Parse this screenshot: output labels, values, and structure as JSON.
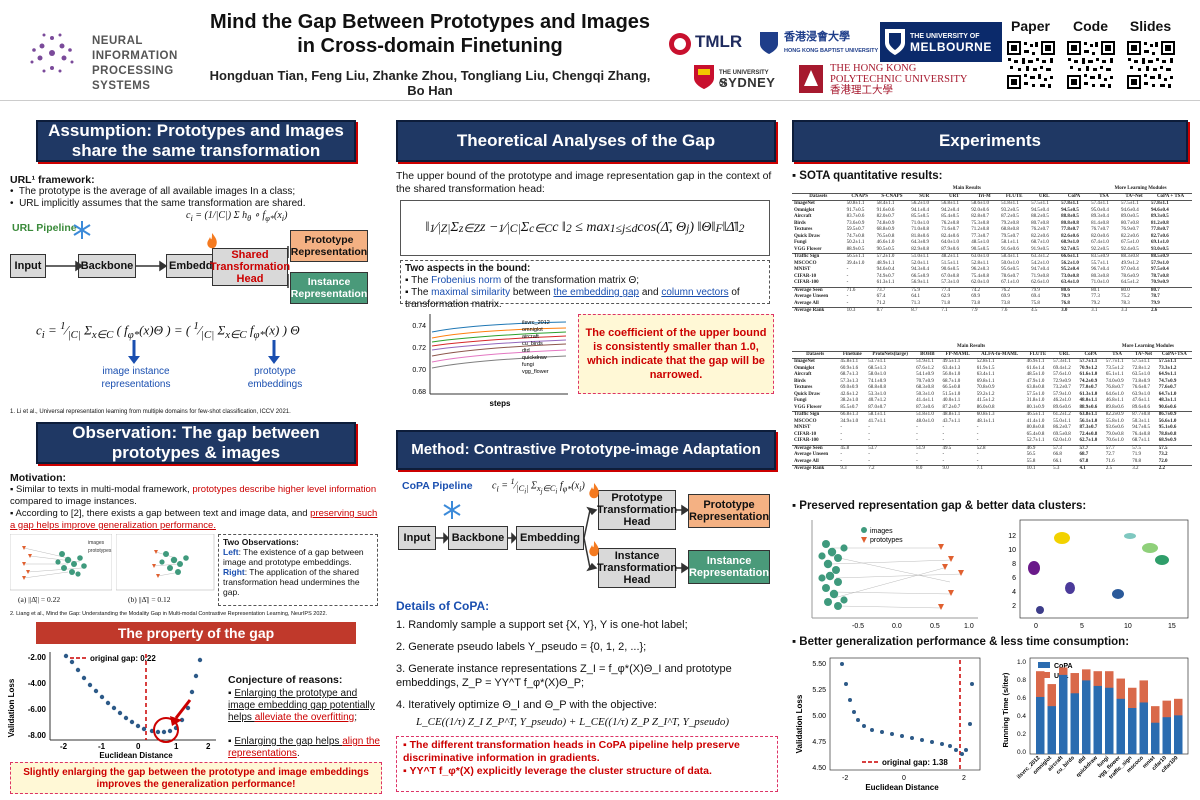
{
  "header": {
    "title_line1": "Mind the Gap Between Prototypes and Images",
    "title_line2": "in Cross-domain Finetuning",
    "authors": "Hongduan Tian, Feng Liu, Zhanke Zhou, Tongliang Liu, Chengqi Zhang, Bo Han",
    "neurips_line1": "NEURAL INFORMATION",
    "neurips_line2": "PROCESSING SYSTEMS",
    "logos": {
      "tmlr": "TMLR",
      "hkbu_cn": "香港浸會大學",
      "hkbu_en": "HONG KONG BAPTIST UNIVERSITY",
      "melb1": "THE UNIVERSITY OF",
      "melb2": "MELBOURNE",
      "syd1": "THE UNIVERSITY OF",
      "syd2": "SYDNEY",
      "polyu1": "THE HONG KONG",
      "polyu2": "POLYTECHNIC UNIVERSITY",
      "polyu3": "香港理工大學"
    },
    "qr_labels": [
      "Paper",
      "Code",
      "Slides"
    ]
  },
  "left": {
    "banner1_line1": "Assumption: Prototypes and Images",
    "banner1_line2": "share the same transformation",
    "url_framework": "URL¹ framework:",
    "bullet1": "The prototype is the average of all available images In a class;",
    "bullet2": "URL implicitly assumes that the same transformation are shared.",
    "pipeline_label": "URL Pipeline",
    "input": "Input",
    "backbone": "Backbone",
    "embedding": "Embedding",
    "shared_head": "Shared Transformation Head",
    "proto_rep": "Prototype Representation",
    "inst_rep": "Instance Representation",
    "label_image_inst": "image instance representations",
    "label_proto_emb": "prototype embeddings",
    "footnote1": "1. Li et al., Universal representation learning from multiple domains for few-shot classification, ICCV 2021.",
    "banner2_line1": "Observation: The gap between",
    "banner2_line2": "prototypes & images",
    "motivation": "Motivation:",
    "mot1a": "Similar to texts in multi-modal framework, ",
    "mot1b": "prototypes describe higher level information",
    "mot1c": " compared to image instances.",
    "mot2a": "According to [2], there exists a gap between text and image data, and ",
    "mot2b": "preserving such a gap helps improve generalization performance.",
    "two_obs": "Two Observations:",
    "obs_left_k": "Left",
    "obs_left": ": The existence of a gap between image and prototype embeddings.",
    "obs_right_k": "Right",
    "obs_right": ": The application of the shared transformation head undermines the gap.",
    "cap_a": "(a) ||Δ̄|| = 0.22",
    "cap_b": "(b) ||Δ̄|| = 0.12",
    "legend_images": "images",
    "legend_prototypes": "prototypes",
    "footnote2": "2. Liang et al., Mind the Gap: Understanding the Modality Gap in Multi-modal Contrastive Representation Learning, NeurIPS 2022.",
    "banner3": "The property of the gap",
    "original_gap_label": "original gap: 0.22",
    "conjecture": "Conjecture of reasons:",
    "conj1a": "Enlarging the prototype and image embedding gap potentially helps ",
    "conj1b": "alleviate the overfitting",
    "conj1c": ";",
    "conj2a": "Enlarging the gap helps ",
    "conj2b": "align the representations",
    "conj2c": ".",
    "xlabel": "Euclidean Distance",
    "ylabel": "Validation Loss",
    "yticks": [
      "-2.00",
      "-4.00",
      "-6.00",
      "-8.00"
    ],
    "xticks": [
      "-2",
      "-1",
      "0",
      "1",
      "2"
    ],
    "conclusion": "Slightly enlarging the gap between the prototype and image embeddings improves the generalization performance!"
  },
  "middle": {
    "banner1": "Theoretical Analyses of the Gap",
    "upper_bound_text": "The upper bound of the prototype and image representation gap in the context of the shared transformation head:",
    "two_aspects": "Two aspects in the bound:",
    "aspect1a": "The ",
    "aspect1b": "Frobenius norm",
    "aspect1c": " of the transformation matrix Θ;",
    "aspect2a": "The ",
    "aspect2b": "maximal similarity",
    "aspect2c": " between ",
    "aspect2d": "the embedding gap",
    "aspect2e": " and ",
    "aspect2f": "column vectors",
    "aspect2g": " of transformation matrix.",
    "coef_text": "The coefficient of the upper bound is consistently smaller than 1.0, which indicate that the gap will be narrowed.",
    "steps_label": "steps",
    "coef_yticks": [
      "0.74",
      "0.72",
      "0.70",
      "0.68"
    ],
    "coef_legend": [
      "ilsvrc_2012",
      "omniglot",
      "aircraft",
      "cu_birds",
      "dtd",
      "quickdraw",
      "fungi",
      "vgg_flower"
    ],
    "banner2": "Method: Contrastive Prototype-image Adaptation",
    "copa_pipeline": "CoPA Pipeline",
    "input": "Input",
    "backbone": "Backbone",
    "embedding": "Embedding",
    "proto_head": "Prototype Transformation Head",
    "inst_head": "Instance Transformation Head",
    "proto_rep": "Prototype Representation",
    "inst_rep": "Instance Representation",
    "details": "Details of CoPA:",
    "step1": "1.  Randomly sample a support set {X, Y}, Y is one-hot label;",
    "step2": "2.  Generate pseudo labels Y_pseudo = {0, 1, 2, ...};",
    "step3": "3.  Generate instance representations Z_I = f_φ*(X)Θ_I and prototype embeddings, Z_P = YY^T f_φ*(X)Θ_P;",
    "step4": "4.  Iteratively optimize Θ_I and Θ_P with the objective:",
    "objective": "L_CE((1/τ) Z_I Z_P^T, Y_pseudo) + L_CE((1/τ) Z_P Z_I^T, Y_pseudo)",
    "note1": "The different transformation heads in CoPA pipeline help preserve discriminative information in gradients.",
    "note2": "YY^T f_φ*(X) explicitly leverage the cluster structure of data."
  },
  "right": {
    "banner": "Experiments",
    "sota": "SOTA quantitative results:",
    "preserved": "Preserved representation gap & better data clusters:",
    "better_gen": "Better generalization performance & less time consumption:",
    "legend_images": "images",
    "legend_prototypes": "prototypes",
    "orig_gap_label": "original gap: 1.38",
    "xlabel": "Euclidean Distance",
    "ylabel": "Validation Loss",
    "ylabel2": "Running Time (s/iter)",
    "legend_copa": "CoPA",
    "legend_url": "URL",
    "table1_headers": [
      "Datasets",
      "CNAPS",
      "S-CNAPS",
      "SUR",
      "URT",
      "Tri-M",
      "FLUTE",
      "URL",
      "CoPA",
      "TSA",
      "TA²-Net",
      "CoPA + TSA"
    ],
    "table1_group1": "Main Results",
    "table1_group2": "More Learning Modules",
    "table1_rows": [
      [
        "ImageNet",
        "50.8±1.1",
        "58.4±1.1",
        "56.2±1.0",
        "56.8±1.1",
        "58.6±1.0",
        "51.8±1.1",
        "57.5±1.1",
        "57.8±1.1",
        "57.4±1.1",
        "57.5±1.1",
        "57.8±1.1"
      ],
      [
        "Omniglot",
        "91.7±0.5",
        "91.6±0.6",
        "94.1±0.4",
        "94.2±0.4",
        "92.0±0.6",
        "93.2±0.5",
        "94.5±0.4",
        "94.5±0.5",
        "95.0±0.4",
        "94.6±0.4",
        "94.6±0.4"
      ],
      [
        "Aircraft",
        "83.7±0.6",
        "82.0±0.7",
        "85.5±0.5",
        "85.4±0.5",
        "82.8±0.7",
        "87.2±0.5",
        "88.2±0.5",
        "88.8±0.5",
        "89.3±0.4",
        "89.0±0.5",
        "89.3±0.5"
      ],
      [
        "Birds",
        "73.6±0.9",
        "74.8±0.9",
        "71.0±1.0",
        "76.2±0.8",
        "75.3±0.8",
        "79.2±0.8",
        "80.7±0.8",
        "80.8±0.8",
        "81.4±0.8",
        "80.7±0.8",
        "81.2±0.8"
      ],
      [
        "Textures",
        "59.5±0.7",
        "68.8±0.9",
        "71.0±0.8",
        "71.6±0.7",
        "71.2±0.8",
        "68.8±0.8",
        "76.2±0.7",
        "77.8±0.7",
        "76.7±0.7",
        "76.9±0.7",
        "77.8±0.7"
      ],
      [
        "Quick Draw",
        "74.7±0.8",
        "76.5±0.8",
        "81.8±0.6",
        "82.4±0.6",
        "77.3±0.7",
        "79.5±0.7",
        "82.2±0.6",
        "82.6±0.6",
        "82.0±0.6",
        "82.2±0.6",
        "82.7±0.6"
      ],
      [
        "Fungi",
        "50.2±1.1",
        "46.6±1.0",
        "64.3±0.9",
        "64.0±1.0",
        "48.5±1.0",
        "58.1±1.1",
        "68.7±1.0",
        "68.9±1.0",
        "67.4±1.0",
        "67.5±1.0",
        "69.1±1.0"
      ],
      [
        "VGG Flower",
        "88.9±0.5",
        "90.5±0.5",
        "82.9±0.8",
        "87.9±0.6",
        "90.5±0.5",
        "91.6±0.6",
        "91.9±0.5",
        "92.7±0.5",
        "92.2±0.5",
        "92.4±0.5",
        "93.0±0.5"
      ],
      [
        "Traffic Sign",
        "56.5±1.1",
        "57.2±1.0",
        "51.0±1.1",
        "48.2±1.1",
        "63.0±1.0",
        "58.4±1.1",
        "63.3±1.2",
        "66.6±1.1",
        "83.5±0.9",
        "88.3±0.8",
        "88.5±0.9"
      ],
      [
        "MSCOCO",
        "39.4±1.0",
        "48.9±1.1",
        "52.0±1.1",
        "51.5±1.1",
        "52.8±1.1",
        "50.0±1.0",
        "54.2±1.0",
        "56.2±1.0",
        "55.7±1.1",
        "49.9±1.2",
        "57.9±1.0"
      ],
      [
        "MNIST",
        "-",
        "94.6±0.4",
        "94.3±0.4",
        "90.6±0.5",
        "96.2±0.3",
        "95.6±0.5",
        "94.7±0.4",
        "95.2±0.4",
        "96.7±0.4",
        "97.0±0.4",
        "97.5±0.4"
      ],
      [
        "CIFAR-10",
        "-",
        "74.9±0.7",
        "66.5±0.9",
        "67.0±0.8",
        "75.4±0.8",
        "78.6±0.7",
        "71.9±0.8",
        "73.0±0.8",
        "80.3±0.8",
        "78.6±0.9",
        "78.7±0.8"
      ],
      [
        "CIFAR-100",
        "-",
        "61.3±1.1",
        "56.9±1.1",
        "57.3±1.0",
        "62.0±1.0",
        "67.1±1.0",
        "62.6±1.0",
        "63.4±1.0",
        "71.0±1.0",
        "64.5±1.2",
        "70.9±0.9"
      ],
      [
        "Average Seen",
        "71.6",
        "73.7",
        "75.9",
        "77.4",
        "74.2",
        "76.2",
        "79.9",
        "80.6",
        "80.1",
        "80.0",
        "80.7"
      ],
      [
        "Average Unseen",
        "-",
        "67.4",
        "64.1",
        "62.9",
        "69.9",
        "69.9",
        "69.4",
        "70.9",
        "77.3",
        "75.2",
        "78.7"
      ],
      [
        "Average All",
        "-",
        "71.2",
        "71.3",
        "71.8",
        "73.8",
        "73.8",
        "75.8",
        "76.8",
        "79.2",
        "78.3",
        "79.9"
      ],
      [
        "Average Rank",
        "10.3",
        "8.7",
        "8.7",
        "7.1",
        "7.9",
        "7.6",
        "4.5",
        "3.0",
        "3.1",
        "3.3",
        "2.6"
      ]
    ],
    "table2_headers": [
      "Datasets",
      "Finetune",
      "ProtoNets(large)",
      "BOHB",
      "FP-MAML",
      "ALFA-fo-MAML",
      "FLUTE",
      "URL",
      "CoPA",
      "TSA",
      "TA²-Net",
      "CoPA+TSA"
    ],
    "table2_group1": "Main Results",
    "table2_group2": "More Learning Modules",
    "table2_rows": [
      [
        "ImageNet",
        "45.8±1.1",
        "53.7±1.1",
        "51.9±1.1",
        "49.5±1.1",
        "52.8±1.1",
        "46.9±1.1",
        "57.3±1.1",
        "57.7±1.1",
        "57.7±1.1",
        "57.5±1.1",
        "57.5±1.1"
      ],
      [
        "Omniglot",
        "60.9±1.6",
        "68.5±1.3",
        "67.6±1.2",
        "63.4±1.3",
        "61.9±1.5",
        "61.6±1.4",
        "69.4±1.2",
        "70.9±1.2",
        "73.5±1.2",
        "72.8±1.2",
        "73.3±1.2"
      ],
      [
        "Aircraft",
        "68.7±1.3",
        "58.0±1.0",
        "54.1±0.9",
        "56.0±1.0",
        "63.4±1.1",
        "48.5±1.0",
        "57.6±1.0",
        "61.6±1.0",
        "65.1±1.1",
        "63.5±1.0",
        "64.9±1.1"
      ],
      [
        "Birds",
        "57.3±1.3",
        "74.1±0.9",
        "70.7±0.9",
        "68.7±1.0",
        "69.8±1.1",
        "47.9±1.0",
        "72.9±0.9",
        "74.2±0.9",
        "74.0±0.9",
        "73.8±0.9",
        "74.7±0.9"
      ],
      [
        "Textures",
        "69.0±0.9",
        "68.8±0.8",
        "68.3±0.8",
        "66.5±0.8",
        "70.8±0.9",
        "63.8±0.8",
        "73.2±0.7",
        "77.0±0.7",
        "76.8±0.7",
        "76.6±0.7",
        "77.6±0.7"
      ],
      [
        "Quick Draw",
        "42.6±1.2",
        "53.3±1.0",
        "50.3±1.0",
        "51.5±1.0",
        "59.2±1.2",
        "57.5±1.0",
        "57.9±1.0",
        "61.3±1.0",
        "64.6±1.0",
        "63.9±1.0",
        "64.7±1.0"
      ],
      [
        "Fungi",
        "38.2±1.0",
        "40.7±1.2",
        "41.4±1.1",
        "40.0±1.1",
        "41.5±1.2",
        "31.8±1.0",
        "46.2±1.0",
        "48.0±1.1",
        "46.8±1.1",
        "47.6±1.1",
        "48.3±1.1"
      ],
      [
        "VGG Flower",
        "85.5±0.7",
        "87.0±0.7",
        "87.3±0.6",
        "87.2±0.7",
        "86.0±0.8",
        "80.1±0.9",
        "89.6±0.6",
        "88.9±0.6",
        "89.8±0.6",
        "89.6±0.6",
        "90.6±0.6"
      ],
      [
        "Traffic Sign",
        "66.8±1.3",
        "58.1±1.1",
        "51.8±1.0",
        "48.8±1.1",
        "60.8±1.3",
        "46.5±1.1",
        "61.2±1.2",
        "63.8±1.1",
        "82.2±0.9",
        "87.7±0.8",
        "86.7±0.9"
      ],
      [
        "MSCOCO",
        "34.9±1.0",
        "41.7±1.1",
        "48.0±1.0",
        "43.7±1.1",
        "48.1±1.1",
        "41.4±1.0",
        "55.0±1.1",
        "56.1±1.0",
        "55.8±1.0",
        "50.3±1.1",
        "56.6±1.0"
      ],
      [
        "MNIST",
        "-",
        "-",
        "-",
        "-",
        "-",
        "80.8±0.8",
        "86.2±0.7",
        "87.3±0.7",
        "93.6±0.6",
        "94.7±0.5",
        "95.1±0.6"
      ],
      [
        "CIFAR-10",
        "-",
        "-",
        "-",
        "-",
        "-",
        "65.4±0.8",
        "69.5±0.8",
        "72.4±0.8",
        "79.0±0.8",
        "76.4±0.8",
        "78.8±0.8"
      ],
      [
        "CIFAR-100",
        "-",
        "-",
        "-",
        "-",
        "-",
        "52.7±1.1",
        "62.0±1.0",
        "62.7±1.0",
        "70.6±1.0",
        "68.7±1.1",
        "68.9±0.9"
      ],
      [
        "Average Seen",
        "45.8",
        "53.7",
        "51.9",
        "49.5",
        "52.8",
        "46.9",
        "57.3",
        "57.7",
        "57.7",
        "57.5",
        "57.5"
      ],
      [
        "Average Unseen",
        "-",
        "-",
        "-",
        "-",
        "-",
        "56.5",
        "66.8",
        "68.7",
        "72.7",
        "71.9",
        "73.2"
      ],
      [
        "Average All",
        "-",
        "-",
        "-",
        "-",
        "-",
        "55.8",
        "66.1",
        "67.8",
        "71.6",
        "70.8",
        "72.0"
      ],
      [
        "Average Rank",
        "9.3",
        "7.2",
        "8.0",
        "9.0",
        "7.1",
        "10.1",
        "5.3",
        "4.1",
        "2.5",
        "3.2",
        "2.2"
      ]
    ],
    "bar_categories": [
      "ilsvrc_2012",
      "omniglot",
      "aircraft",
      "cu_birds",
      "dtd",
      "quickdraw",
      "fungi",
      "vgg_flower",
      "traffic_sign",
      "mscoco",
      "mnist",
      "cifar10",
      "cifar100"
    ],
    "scatter_xticks": [
      "-0.5",
      "0.0",
      "0.5",
      "1.0"
    ],
    "cluster_xticks": [
      "0",
      "5",
      "10",
      "15"
    ],
    "cluster_yticks": [
      "12",
      "10",
      "8",
      "6",
      "4",
      "2"
    ],
    "gen_yticks": [
      "5.50",
      "5.25",
      "5.00",
      "4.75",
      "4.50"
    ],
    "gen_xticks": [
      "-2",
      "0",
      "2"
    ],
    "time_yticks": [
      "1.0",
      "0.8",
      "0.6",
      "0.4",
      "0.2",
      "0.0"
    ]
  }
}
